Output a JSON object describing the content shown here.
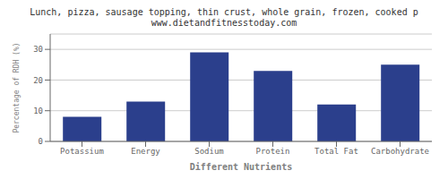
{
  "chart_data": {
    "type": "bar",
    "title": "Lunch, pizza, sausage topping, thin crust, whole grain, frozen, cooked p",
    "subtitle": "www.dietandfitnesstoday.com",
    "xlabel": "Different Nutrients",
    "ylabel": "Percentage of RDH (%)",
    "categories": [
      "Potassium",
      "Energy",
      "Sodium",
      "Protein",
      "Total Fat",
      "Carbohydrate"
    ],
    "values": [
      8,
      13,
      29,
      23,
      12,
      25
    ],
    "color": "#2b3f8c",
    "ylim": [
      0,
      35
    ],
    "yticks": [
      0,
      10,
      20,
      30
    ],
    "grid": true
  }
}
